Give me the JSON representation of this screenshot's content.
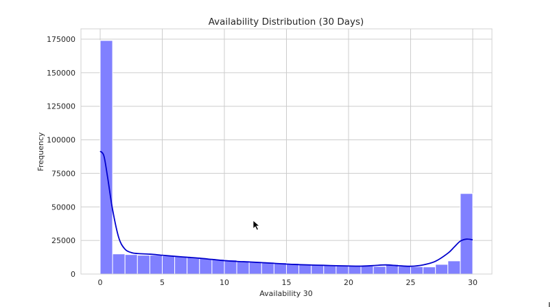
{
  "chart_data": {
    "type": "bar",
    "subtype": "histogram_with_kde",
    "title": "Availability Distribution (30 Days)",
    "xlabel": "Availability 30",
    "ylabel": "Frequency",
    "xlim": [
      -1.5,
      31.5
    ],
    "ylim": [
      0,
      183750
    ],
    "xticks": [
      0,
      5,
      10,
      15,
      20,
      25,
      30
    ],
    "yticks": [
      0,
      25000,
      50000,
      75000,
      100000,
      125000,
      150000,
      175000
    ],
    "grid": true,
    "legend": null,
    "bin_edges": [
      0,
      1,
      2,
      3,
      4,
      5,
      6,
      7,
      8,
      9,
      10,
      11,
      12,
      13,
      14,
      15,
      16,
      17,
      18,
      19,
      20,
      21,
      22,
      23,
      24,
      25,
      26,
      27,
      28,
      29,
      30
    ],
    "categories": [
      "0",
      "1",
      "2",
      "3",
      "4",
      "5",
      "6",
      "7",
      "8",
      "9",
      "10",
      "11",
      "12",
      "13",
      "14",
      "15",
      "16",
      "17",
      "18",
      "19",
      "20",
      "21",
      "22",
      "23",
      "24",
      "25",
      "26",
      "27",
      "28",
      "29"
    ],
    "values": [
      174000,
      15000,
      14500,
      14000,
      14000,
      13500,
      13000,
      12500,
      11500,
      11000,
      10500,
      9800,
      9300,
      8800,
      8400,
      7900,
      7500,
      7200,
      6800,
      6500,
      6200,
      6000,
      5700,
      7200,
      5800,
      5500,
      5300,
      7200,
      9800,
      60000
    ],
    "bar_color": "#8080ff",
    "kde": {
      "color": "#0000cc",
      "x": [
        0,
        0.3,
        0.6,
        1.0,
        1.5,
        2.0,
        2.5,
        3,
        4,
        5,
        6,
        7,
        8,
        9,
        10,
        11,
        12,
        13,
        14,
        15,
        16,
        17,
        18,
        19,
        20,
        21,
        22,
        23,
        24,
        25,
        26,
        27,
        28,
        28.5,
        29,
        29.5,
        30
      ],
      "y": [
        91500,
        88000,
        72000,
        48000,
        27000,
        18500,
        16000,
        15300,
        14800,
        14000,
        13200,
        12500,
        11800,
        10900,
        10000,
        9400,
        9000,
        8500,
        8000,
        7400,
        7000,
        6700,
        6500,
        6200,
        6000,
        5900,
        6300,
        6800,
        6200,
        5800,
        6800,
        9500,
        15500,
        20000,
        24500,
        26000,
        25500
      ]
    }
  },
  "ui": {
    "cursor": "arrow-pointer"
  }
}
